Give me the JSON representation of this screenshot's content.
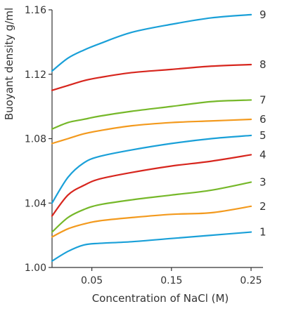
{
  "chart_data": {
    "type": "line",
    "title": "",
    "xlabel": "Concentration of NaCl (M)",
    "ylabel": "Buoyant density g/ml",
    "xlim": [
      0.0,
      0.265
    ],
    "ylim": [
      1.0,
      1.16
    ],
    "x_ticks": [
      {
        "value": 0.05,
        "label": "0.05"
      },
      {
        "value": 0.15,
        "label": "0.15"
      },
      {
        "value": 0.25,
        "label": "0.25"
      }
    ],
    "y_ticks": [
      {
        "value": 1.0,
        "label": "1.00"
      },
      {
        "value": 1.04,
        "label": "1.04"
      },
      {
        "value": 1.08,
        "label": "1.08"
      },
      {
        "value": 1.12,
        "label": "1.12"
      },
      {
        "value": 1.16,
        "label": "1.16"
      }
    ],
    "grid": false,
    "series": [
      {
        "label": "1",
        "color": "#1aa0d8",
        "x": [
          0.0,
          0.02,
          0.04,
          0.06,
          0.1,
          0.15,
          0.2,
          0.25
        ],
        "y": [
          1.004,
          1.01,
          1.014,
          1.015,
          1.016,
          1.018,
          1.02,
          1.022
        ]
      },
      {
        "label": "2",
        "color": "#f39a1e",
        "x": [
          0.0,
          0.02,
          0.04,
          0.06,
          0.1,
          0.15,
          0.2,
          0.25
        ],
        "y": [
          1.019,
          1.024,
          1.027,
          1.029,
          1.031,
          1.033,
          1.034,
          1.038
        ]
      },
      {
        "label": "3",
        "color": "#76b82a",
        "x": [
          0.0,
          0.02,
          0.04,
          0.06,
          0.1,
          0.15,
          0.2,
          0.25
        ],
        "y": [
          1.022,
          1.031,
          1.036,
          1.039,
          1.042,
          1.045,
          1.048,
          1.053
        ]
      },
      {
        "label": "4",
        "color": "#d7261e",
        "x": [
          0.0,
          0.02,
          0.04,
          0.06,
          0.1,
          0.15,
          0.2,
          0.25
        ],
        "y": [
          1.032,
          1.045,
          1.051,
          1.055,
          1.059,
          1.063,
          1.066,
          1.07
        ]
      },
      {
        "label": "5",
        "color": "#1aa0d8",
        "x": [
          0.0,
          0.02,
          0.04,
          0.06,
          0.1,
          0.15,
          0.2,
          0.25
        ],
        "y": [
          1.04,
          1.056,
          1.065,
          1.069,
          1.073,
          1.077,
          1.08,
          1.082
        ]
      },
      {
        "label": "6",
        "color": "#f39a1e",
        "x": [
          0.0,
          0.02,
          0.04,
          0.06,
          0.1,
          0.15,
          0.2,
          0.25
        ],
        "y": [
          1.077,
          1.08,
          1.083,
          1.085,
          1.088,
          1.09,
          1.091,
          1.092
        ]
      },
      {
        "label": "7",
        "color": "#76b82a",
        "x": [
          0.0,
          0.02,
          0.04,
          0.06,
          0.1,
          0.15,
          0.2,
          0.25
        ],
        "y": [
          1.086,
          1.09,
          1.092,
          1.094,
          1.097,
          1.1,
          1.103,
          1.104
        ]
      },
      {
        "label": "8",
        "color": "#d7261e",
        "x": [
          0.0,
          0.02,
          0.04,
          0.06,
          0.1,
          0.15,
          0.2,
          0.25
        ],
        "y": [
          1.11,
          1.113,
          1.116,
          1.118,
          1.121,
          1.123,
          1.125,
          1.126
        ]
      },
      {
        "label": "9",
        "color": "#1aa0d8",
        "x": [
          0.0,
          0.02,
          0.04,
          0.06,
          0.1,
          0.15,
          0.2,
          0.25
        ],
        "y": [
          1.122,
          1.13,
          1.135,
          1.139,
          1.146,
          1.151,
          1.155,
          1.157
        ]
      }
    ]
  }
}
